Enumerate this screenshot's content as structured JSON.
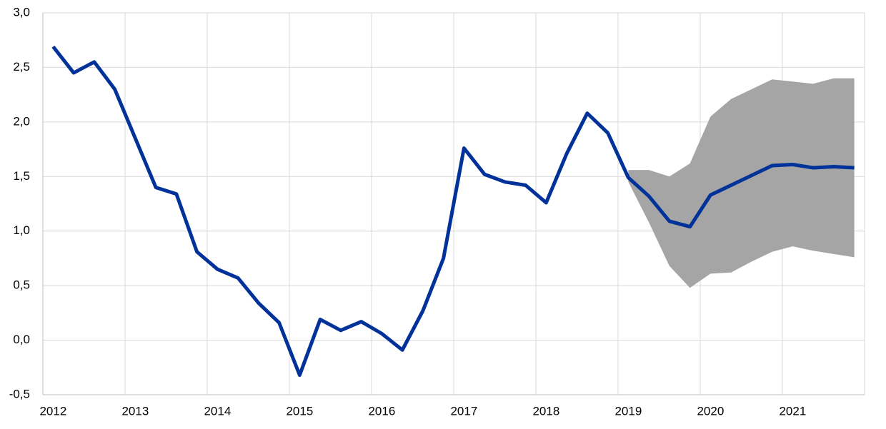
{
  "chart_data": {
    "type": "line",
    "categories": [
      "2012",
      null,
      null,
      null,
      "2013",
      null,
      null,
      null,
      "2014",
      null,
      null,
      null,
      "2015",
      null,
      null,
      null,
      "2016",
      null,
      null,
      null,
      "2017",
      null,
      null,
      null,
      "2018",
      null,
      null,
      null,
      "2019",
      null,
      null,
      null,
      "2020",
      null,
      null,
      null,
      "2021",
      null,
      null,
      null
    ],
    "series": [
      {
        "color": "#003299",
        "values": [
          2.69,
          2.45,
          2.55,
          2.3,
          1.85,
          1.4,
          1.34,
          0.81,
          0.65,
          0.57,
          0.34,
          0.16,
          -0.32,
          0.19,
          0.09,
          0.17,
          0.06,
          -0.09,
          0.27,
          0.75,
          1.76,
          1.52,
          1.45,
          1.42,
          1.26,
          1.71,
          2.08,
          1.9,
          1.49,
          1.32,
          1.09,
          1.04,
          1.33,
          1.42,
          1.51,
          1.6,
          1.61,
          1.58,
          1.59,
          1.58
        ]
      }
    ],
    "band": {
      "color": "#a5a5a5",
      "upper": [
        null,
        null,
        null,
        null,
        null,
        null,
        null,
        null,
        null,
        null,
        null,
        null,
        null,
        null,
        null,
        null,
        null,
        null,
        null,
        null,
        null,
        null,
        null,
        null,
        null,
        null,
        null,
        null,
        1.56,
        1.56,
        1.5,
        1.62,
        2.05,
        2.21,
        2.3,
        2.39,
        2.37,
        2.35,
        2.4,
        2.4
      ],
      "lower": [
        null,
        null,
        null,
        null,
        null,
        null,
        null,
        null,
        null,
        null,
        null,
        null,
        null,
        null,
        null,
        null,
        null,
        null,
        null,
        null,
        null,
        null,
        null,
        null,
        null,
        null,
        null,
        null,
        1.45,
        1.08,
        0.68,
        0.48,
        0.61,
        0.62,
        0.72,
        0.81,
        0.86,
        0.82,
        0.79,
        0.76
      ]
    },
    "ylim": [
      -0.5,
      3.0
    ],
    "yticks": [
      {
        "value": -0.5,
        "label": "-0,5"
      },
      {
        "value": 0,
        "label": "0,0"
      },
      {
        "value": 0.5,
        "label": "0,5"
      },
      {
        "value": 1,
        "label": "1,0"
      },
      {
        "value": 1.5,
        "label": "1,5"
      },
      {
        "value": 2,
        "label": "2,0"
      },
      {
        "value": 2.5,
        "label": "2,5"
      },
      {
        "value": 3,
        "label": "3,0"
      }
    ],
    "grid": true
  }
}
